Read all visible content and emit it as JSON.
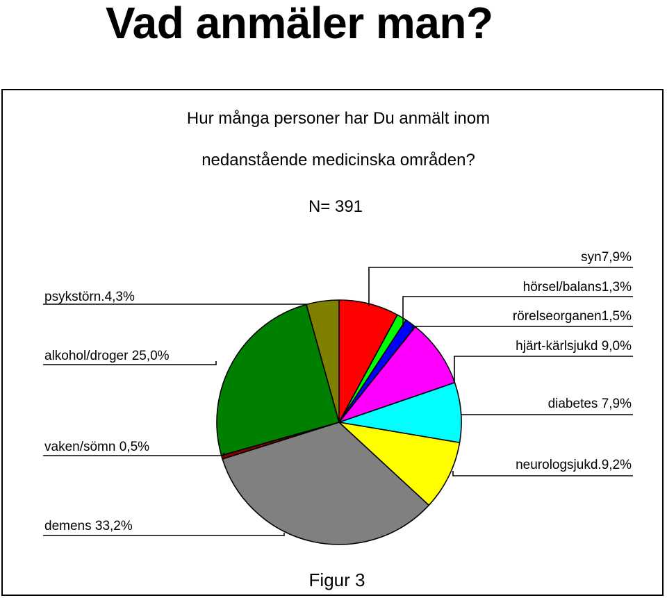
{
  "slide": {
    "title": "Vad anmäler man?"
  },
  "chart_data": {
    "type": "pie",
    "title_lines": [
      "Hur många personer har Du anmält inom",
      "nedanstående medicinska områden?"
    ],
    "subtitle": "N= 391",
    "figure_caption": "Figur 3",
    "slices": [
      {
        "name": "syn",
        "label": "syn7,9%",
        "value": 7.9,
        "color": "#ff0000"
      },
      {
        "name": "hörsel/balans",
        "label": "hörsel/balans1,3%",
        "value": 1.3,
        "color": "#00ff00"
      },
      {
        "name": "rörelseorganen",
        "label": "rörelseorganen1,5%",
        "value": 1.5,
        "color": "#0000ff"
      },
      {
        "name": "hjärt-kärlsjukd",
        "label": "hjärt-kärlsjukd 9,0%",
        "value": 9.0,
        "color": "#ff00ff"
      },
      {
        "name": "diabetes",
        "label": "diabetes 7,9%",
        "value": 7.9,
        "color": "#00ffff"
      },
      {
        "name": "neurologsjukd.",
        "label": "neurologsjukd.9,2%",
        "value": 9.2,
        "color": "#ffff00"
      },
      {
        "name": "demens",
        "label": "demens 33,2%",
        "value": 33.2,
        "color": "#808080"
      },
      {
        "name": "vaken/sömn",
        "label": "vaken/sömn 0,5%",
        "value": 0.5,
        "color": "#800000"
      },
      {
        "name": "alkohol/droger",
        "label": "alkohol/droger 25,0%",
        "value": 25.0,
        "color": "#008000"
      },
      {
        "name": "psykstörn.",
        "label": "psykstörn.4,3%",
        "value": 4.3,
        "color": "#808000"
      }
    ],
    "start_angle": "12 o'clock",
    "direction": "clockwise",
    "legend": "none"
  }
}
